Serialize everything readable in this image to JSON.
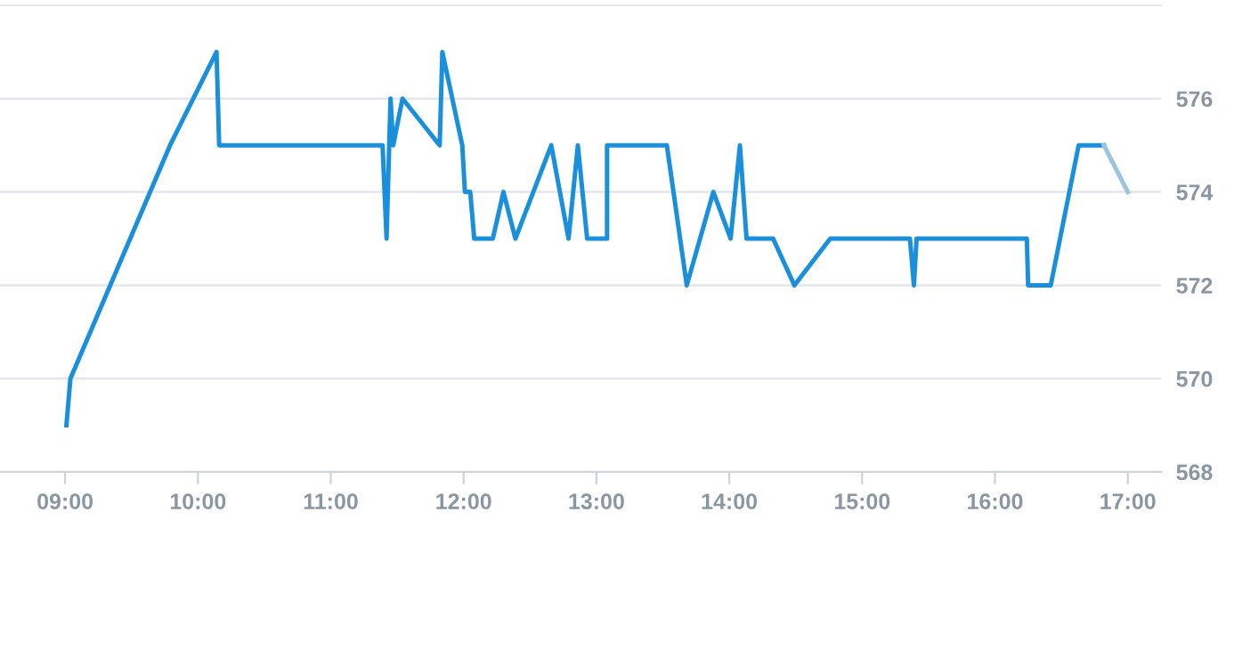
{
  "chart_data": {
    "type": "line",
    "xlim": [
      8.51,
      17.25
    ],
    "ylim": [
      568,
      578
    ],
    "xticks": [
      {
        "value": 9,
        "label": "09:00"
      },
      {
        "value": 10,
        "label": "10:00"
      },
      {
        "value": 11,
        "label": "11:00"
      },
      {
        "value": 12,
        "label": "12:00"
      },
      {
        "value": 13,
        "label": "13:00"
      },
      {
        "value": 14,
        "label": "14:00"
      },
      {
        "value": 15,
        "label": "15:00"
      },
      {
        "value": 16,
        "label": "16:00"
      },
      {
        "value": 17,
        "label": "17:00"
      }
    ],
    "yticks": [
      568,
      570,
      572,
      574,
      576
    ],
    "grid": "y",
    "legend": false,
    "marker": "none",
    "line_style": "solid",
    "series": [
      {
        "color": "#1a8fdc",
        "x": [
          9.01,
          9.04,
          9.79,
          10.14,
          10.16,
          11.39,
          11.42,
          11.45,
          11.47,
          11.54,
          11.82,
          11.84,
          11.99,
          12.01,
          12.05,
          12.08,
          12.22,
          12.3,
          12.39,
          12.66,
          12.79,
          12.86,
          12.93,
          13.08,
          13.08,
          13.53,
          13.68,
          13.88,
          14.01,
          14.08,
          14.13,
          14.33,
          14.49,
          14.76,
          15.36,
          15.39,
          15.41,
          16.24,
          16.25,
          16.42,
          16.63,
          16.82
        ],
        "values": [
          569,
          570,
          575,
          577,
          575,
          575,
          573,
          576,
          575,
          576,
          575,
          577,
          575,
          574,
          574,
          573,
          573,
          574,
          573,
          575,
          573,
          575,
          573,
          573,
          575,
          575,
          572,
          574,
          573,
          575,
          573,
          573,
          572,
          573,
          573,
          572,
          573,
          573,
          572,
          572,
          575,
          575
        ]
      },
      {
        "color": "#9cc3e0",
        "x": [
          16.82,
          17.0
        ],
        "values": [
          575,
          574
        ]
      }
    ]
  }
}
